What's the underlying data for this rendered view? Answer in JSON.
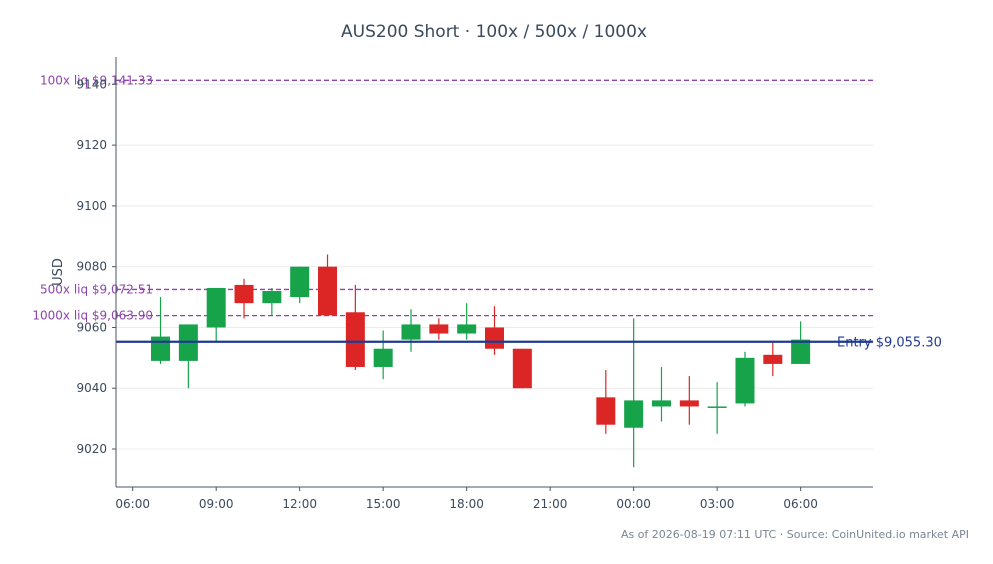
{
  "chart_data": {
    "type": "candlestick",
    "title": "AUS200 Short · 100x / 500x / 1000x",
    "ylabel": "USD",
    "footer": "As of 2026-08-19 07:11 UTC · Source: CoinUnited.io market API",
    "y_ticks": [
      9020,
      9040,
      9060,
      9080,
      9100,
      9120,
      9140
    ],
    "x_ticks": [
      "06:00",
      "09:00",
      "12:00",
      "15:00",
      "18:00",
      "21:00",
      "00:00",
      "03:00",
      "06:00"
    ],
    "x_tick_hours": [
      0,
      3,
      6,
      9,
      12,
      15,
      18,
      21,
      24
    ],
    "xlim_hours": [
      -0.6,
      26.6
    ],
    "ylim": [
      9007.5,
      9149
    ],
    "colors": {
      "up": "#16a34a",
      "down": "#dc2626",
      "liq": "#8e44ad",
      "entry": "#1f3a93",
      "axis": "#4a5563",
      "grid": "#ececec"
    },
    "levels": [
      {
        "label": "100x liq $9,141.33",
        "value": 9141.33
      },
      {
        "label": "500x liq $9,072.51",
        "value": 9072.51
      },
      {
        "label": "1000x liq $9,063.90",
        "value": 9063.9
      }
    ],
    "entry": {
      "label": "Entry $9,055.30",
      "value": 9055.3
    },
    "candles": [
      {
        "t": 1,
        "o": 9049,
        "h": 9070,
        "l": 9048,
        "c": 9057
      },
      {
        "t": 2,
        "o": 9049,
        "h": 9061,
        "l": 9040,
        "c": 9061
      },
      {
        "t": 3,
        "o": 9060,
        "h": 9073,
        "l": 9055,
        "c": 9073
      },
      {
        "t": 4,
        "o": 9074,
        "h": 9076,
        "l": 9063,
        "c": 9068
      },
      {
        "t": 5,
        "o": 9068,
        "h": 9073,
        "l": 9064,
        "c": 9072
      },
      {
        "t": 6,
        "o": 9070,
        "h": 9080,
        "l": 9068,
        "c": 9080
      },
      {
        "t": 7,
        "o": 9080,
        "h": 9084,
        "l": 9064,
        "c": 9064
      },
      {
        "t": 8,
        "o": 9065,
        "h": 9074,
        "l": 9046,
        "c": 9047
      },
      {
        "t": 9,
        "o": 9047,
        "h": 9059,
        "l": 9043,
        "c": 9053
      },
      {
        "t": 10,
        "o": 9056,
        "h": 9066,
        "l": 9052,
        "c": 9061
      },
      {
        "t": 11,
        "o": 9061,
        "h": 9063,
        "l": 9056,
        "c": 9058
      },
      {
        "t": 12,
        "o": 9058,
        "h": 9068,
        "l": 9056,
        "c": 9061
      },
      {
        "t": 13,
        "o": 9060,
        "h": 9067,
        "l": 9051,
        "c": 9053
      },
      {
        "t": 14,
        "o": 9053,
        "h": 9053,
        "l": 9040,
        "c": 9040
      },
      {
        "t": 17,
        "o": 9037,
        "h": 9046,
        "l": 9025,
        "c": 9028
      },
      {
        "t": 18,
        "o": 9027,
        "h": 9063,
        "l": 9014,
        "c": 9036
      },
      {
        "t": 19,
        "o": 9034,
        "h": 9047,
        "l": 9029,
        "c": 9036
      },
      {
        "t": 20,
        "o": 9036,
        "h": 9044,
        "l": 9028,
        "c": 9034
      },
      {
        "t": 21,
        "o": 9034,
        "h": 9042,
        "l": 9025,
        "c": 9034
      },
      {
        "t": 22,
        "o": 9035,
        "h": 9052,
        "l": 9034,
        "c": 9050
      },
      {
        "t": 23,
        "o": 9051,
        "h": 9055,
        "l": 9044,
        "c": 9048
      },
      {
        "t": 24,
        "o": 9048,
        "h": 9062,
        "l": 9048,
        "c": 9056
      }
    ]
  }
}
